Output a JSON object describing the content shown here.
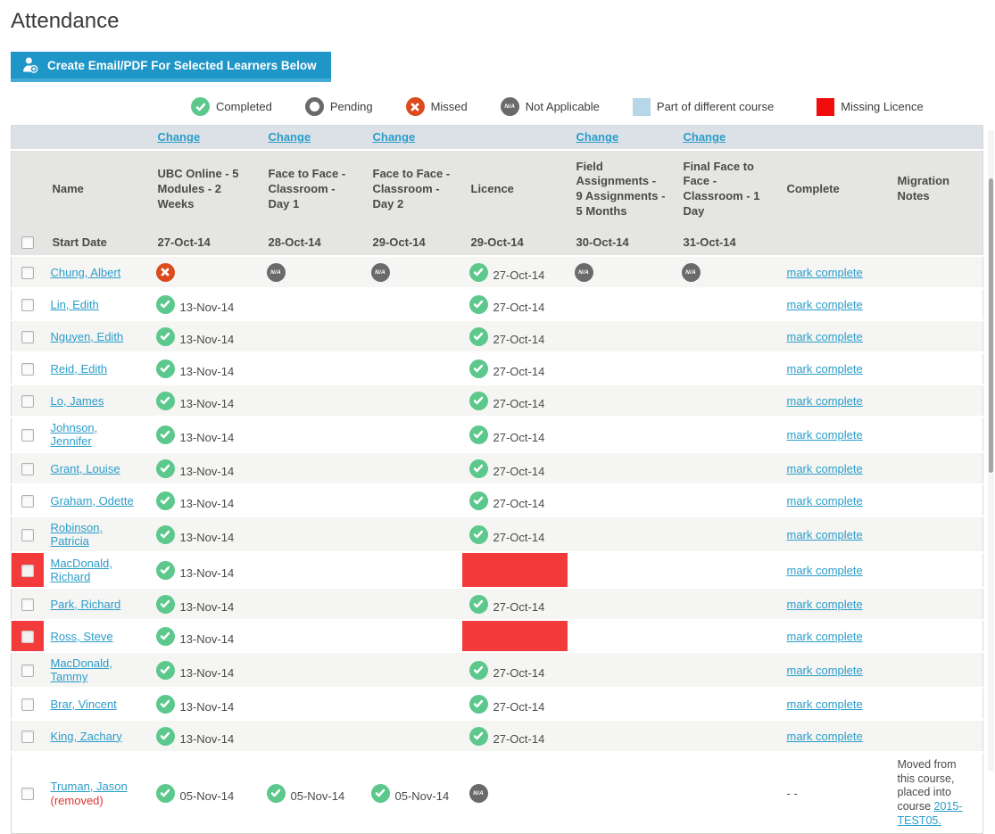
{
  "page": {
    "title": "Attendance"
  },
  "toolbar": {
    "create_button_label": "Create Email/PDF For Selected Learners Below"
  },
  "colors": {
    "accent_blue": "#2b9dc9",
    "button_blue": "#1f96c8",
    "button_edge": "#45abd5",
    "completed_green": "#5cc88c",
    "missed_orange": "#dc4a1e",
    "na_gray": "#6a6a6a",
    "missing_licence_red": "#f43b3b",
    "legend_red": "#f20d0d",
    "diff_course_blue": "#b5d7e8",
    "header_gray": "#e5e5e4",
    "change_row_gray": "#dce1e8",
    "row_alt": "#f5f5f3"
  },
  "legend": [
    {
      "icon": "completed-icon",
      "label": "Completed"
    },
    {
      "icon": "pending-icon",
      "label": "Pending"
    },
    {
      "icon": "missed-icon",
      "label": "Missed"
    },
    {
      "icon": "not-applicable-icon",
      "label": "Not Applicable"
    },
    {
      "icon": "part-of-different-course-swatch",
      "label": "Part of different course"
    },
    {
      "icon": "missing-licence-swatch",
      "label": "Missing Licence"
    }
  ],
  "table": {
    "change_label": "Change",
    "mark_complete_label": "mark complete",
    "columns": [
      {
        "key": "select",
        "label": "",
        "start": ""
      },
      {
        "key": "name",
        "label": "Name",
        "start": "Start Date"
      },
      {
        "key": "ubc",
        "label": "UBC Online - 5 Modules - 2 Weeks",
        "start": "27-Oct-14",
        "change": true
      },
      {
        "key": "day1",
        "label": "Face to Face - Classroom - Day 1",
        "start": "28-Oct-14",
        "change": true
      },
      {
        "key": "day2",
        "label": "Face to Face - Classroom - Day 2",
        "start": "29-Oct-14",
        "change": true
      },
      {
        "key": "licence",
        "label": "Licence",
        "start": "29-Oct-14",
        "change": false
      },
      {
        "key": "field",
        "label": "Field Assignments - 9 Assignments - 5 Months",
        "start": "30-Oct-14",
        "change": true
      },
      {
        "key": "final",
        "label": "Final Face to Face - Classroom - 1 Day",
        "start": "31-Oct-14",
        "change": true
      },
      {
        "key": "complete",
        "label": "Complete",
        "start": ""
      },
      {
        "key": "migration",
        "label": "Migration Notes",
        "start": ""
      }
    ],
    "rows": [
      {
        "name": "Chung, Albert",
        "flagged": false,
        "removed": "",
        "cells": {
          "ubc": {
            "icon": "missed"
          },
          "day1": {
            "icon": "na"
          },
          "day2": {
            "icon": "na"
          },
          "licence": {
            "icon": "completed",
            "date": "27-Oct-14"
          },
          "field": {
            "icon": "na"
          },
          "final": {
            "icon": "na"
          }
        },
        "complete": {
          "label": "mark complete",
          "link": true
        }
      },
      {
        "name": "Lin, Edith",
        "flagged": false,
        "removed": "",
        "cells": {
          "ubc": {
            "icon": "completed",
            "date": "13-Nov-14"
          },
          "licence": {
            "icon": "completed",
            "date": "27-Oct-14"
          }
        },
        "complete": {
          "label": "mark complete",
          "link": true
        }
      },
      {
        "name": "Nguyen, Edith",
        "flagged": false,
        "removed": "",
        "cells": {
          "ubc": {
            "icon": "completed",
            "date": "13-Nov-14"
          },
          "licence": {
            "icon": "completed",
            "date": "27-Oct-14"
          }
        },
        "complete": {
          "label": "mark complete",
          "link": true
        }
      },
      {
        "name": "Reid, Edith",
        "flagged": false,
        "removed": "",
        "cells": {
          "ubc": {
            "icon": "completed",
            "date": "13-Nov-14"
          },
          "licence": {
            "icon": "completed",
            "date": "27-Oct-14"
          }
        },
        "complete": {
          "label": "mark complete",
          "link": true
        }
      },
      {
        "name": "Lo, James",
        "flagged": false,
        "removed": "",
        "cells": {
          "ubc": {
            "icon": "completed",
            "date": "13-Nov-14"
          },
          "licence": {
            "icon": "completed",
            "date": "27-Oct-14"
          }
        },
        "complete": {
          "label": "mark complete",
          "link": true
        }
      },
      {
        "name": "Johnson, Jennifer",
        "flagged": false,
        "removed": "",
        "cells": {
          "ubc": {
            "icon": "completed",
            "date": "13-Nov-14"
          },
          "licence": {
            "icon": "completed",
            "date": "27-Oct-14"
          }
        },
        "complete": {
          "label": "mark complete",
          "link": true
        }
      },
      {
        "name": "Grant, Louise",
        "flagged": false,
        "removed": "",
        "cells": {
          "ubc": {
            "icon": "completed",
            "date": "13-Nov-14"
          },
          "licence": {
            "icon": "completed",
            "date": "27-Oct-14"
          }
        },
        "complete": {
          "label": "mark complete",
          "link": true
        }
      },
      {
        "name": "Graham, Odette",
        "flagged": false,
        "removed": "",
        "cells": {
          "ubc": {
            "icon": "completed",
            "date": "13-Nov-14"
          },
          "licence": {
            "icon": "completed",
            "date": "27-Oct-14"
          }
        },
        "complete": {
          "label": "mark complete",
          "link": true
        }
      },
      {
        "name": "Robinson, Patricia",
        "flagged": false,
        "removed": "",
        "cells": {
          "ubc": {
            "icon": "completed",
            "date": "13-Nov-14"
          },
          "licence": {
            "icon": "completed",
            "date": "27-Oct-14"
          }
        },
        "complete": {
          "label": "mark complete",
          "link": true
        }
      },
      {
        "name": "MacDonald, Richard",
        "flagged": true,
        "removed": "",
        "cells": {
          "ubc": {
            "icon": "completed",
            "date": "13-Nov-14"
          },
          "licence": {
            "icon": "missing-licence"
          }
        },
        "complete": {
          "label": "mark complete",
          "link": true
        }
      },
      {
        "name": "Park, Richard",
        "flagged": false,
        "removed": "",
        "cells": {
          "ubc": {
            "icon": "completed",
            "date": "13-Nov-14"
          },
          "licence": {
            "icon": "completed",
            "date": "27-Oct-14"
          }
        },
        "complete": {
          "label": "mark complete",
          "link": true
        }
      },
      {
        "name": "Ross, Steve",
        "flagged": true,
        "removed": "",
        "cells": {
          "ubc": {
            "icon": "completed",
            "date": "13-Nov-14"
          },
          "licence": {
            "icon": "missing-licence"
          }
        },
        "complete": {
          "label": "mark complete",
          "link": true
        }
      },
      {
        "name": "MacDonald, Tammy",
        "flagged": false,
        "removed": "",
        "cells": {
          "ubc": {
            "icon": "completed",
            "date": "13-Nov-14"
          },
          "licence": {
            "icon": "completed",
            "date": "27-Oct-14"
          }
        },
        "complete": {
          "label": "mark complete",
          "link": true
        }
      },
      {
        "name": "Brar, Vincent",
        "flagged": false,
        "removed": "",
        "cells": {
          "ubc": {
            "icon": "completed",
            "date": "13-Nov-14"
          },
          "licence": {
            "icon": "completed",
            "date": "27-Oct-14"
          }
        },
        "complete": {
          "label": "mark complete",
          "link": true
        }
      },
      {
        "name": "King, Zachary",
        "flagged": false,
        "removed": "",
        "cells": {
          "ubc": {
            "icon": "completed",
            "date": "13-Nov-14"
          },
          "licence": {
            "icon": "completed",
            "date": "27-Oct-14"
          }
        },
        "complete": {
          "label": "mark complete",
          "link": true
        }
      },
      {
        "name": "Truman, Jason",
        "flagged": false,
        "removed": "(removed)",
        "cells": {
          "ubc": {
            "icon": "completed",
            "date": "05-Nov-14"
          },
          "day1": {
            "icon": "completed",
            "date": "05-Nov-14"
          },
          "day2": {
            "icon": "completed",
            "date": "05-Nov-14"
          },
          "licence": {
            "icon": "na"
          }
        },
        "complete": {
          "label": "- -",
          "link": false
        },
        "migration": {
          "text": "Moved from this course, placed into course ",
          "link_label": "2015-TEST05."
        }
      }
    ]
  }
}
